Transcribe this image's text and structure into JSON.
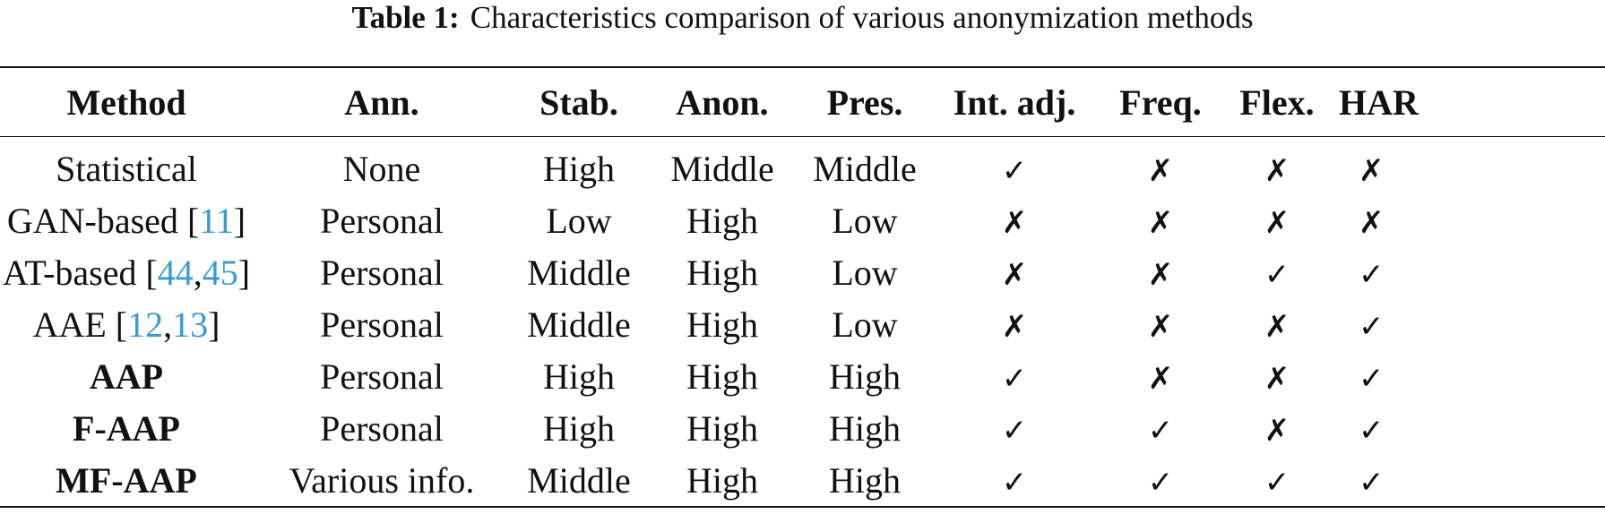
{
  "caption": {
    "label": "Table 1:",
    "text": "Characteristics comparison of various anonymization methods"
  },
  "table": {
    "headers": [
      "Method",
      "Ann.",
      "Stab.",
      "Anon.",
      "Pres.",
      "Int. adj.",
      "Freq.",
      "Flex.",
      "HAR"
    ],
    "rows": [
      {
        "method": "Statistical",
        "bold": false,
        "cite_open": "",
        "cite_a": "",
        "cite_sep": "",
        "cite_b": "",
        "cite_close": "",
        "ann": "None",
        "stab": "High",
        "anon": "Middle",
        "pres": "Middle",
        "int_adj": "✓",
        "freq": "✗",
        "flex": "✗",
        "har": "✗"
      },
      {
        "method": "GAN-based",
        "bold": false,
        "cite_open": " [",
        "cite_a": "11",
        "cite_sep": "",
        "cite_b": "",
        "cite_close": "]",
        "ann": "Personal",
        "stab": "Low",
        "anon": "High",
        "pres": "Low",
        "int_adj": "✗",
        "freq": "✗",
        "flex": "✗",
        "har": "✗"
      },
      {
        "method": "AT-based",
        "bold": false,
        "cite_open": " [",
        "cite_a": "44",
        "cite_sep": ",",
        "cite_b": "45",
        "cite_close": "]",
        "ann": "Personal",
        "stab": "Middle",
        "anon": "High",
        "pres": "Low",
        "int_adj": "✗",
        "freq": "✗",
        "flex": "✓",
        "har": "✓"
      },
      {
        "method": "AAE",
        "bold": false,
        "cite_open": " [",
        "cite_a": "12",
        "cite_sep": ",",
        "cite_b": "13",
        "cite_close": "]",
        "ann": "Personal",
        "stab": "Middle",
        "anon": "High",
        "pres": "Low",
        "int_adj": "✗",
        "freq": "✗",
        "flex": "✗",
        "har": "✓"
      },
      {
        "method": "AAP",
        "bold": true,
        "cite_open": "",
        "cite_a": "",
        "cite_sep": "",
        "cite_b": "",
        "cite_close": "",
        "ann": "Personal",
        "stab": "High",
        "anon": "High",
        "pres": "High",
        "int_adj": "✓",
        "freq": "✗",
        "flex": "✗",
        "har": "✓"
      },
      {
        "method": "F-AAP",
        "bold": true,
        "cite_open": "",
        "cite_a": "",
        "cite_sep": "",
        "cite_b": "",
        "cite_close": "",
        "ann": "Personal",
        "stab": "High",
        "anon": "High",
        "pres": "High",
        "int_adj": "✓",
        "freq": "✓",
        "flex": "✗",
        "har": "✓"
      },
      {
        "method": "MF-AAP",
        "bold": true,
        "cite_open": "",
        "cite_a": "",
        "cite_sep": "",
        "cite_b": "",
        "cite_close": "",
        "ann": "Various info.",
        "stab": "Middle",
        "anon": "High",
        "pres": "High",
        "int_adj": "✓",
        "freq": "✓",
        "flex": "✓",
        "har": "✓"
      }
    ]
  },
  "colors": {
    "citation": "#3a9ad6",
    "text": "#111111"
  }
}
